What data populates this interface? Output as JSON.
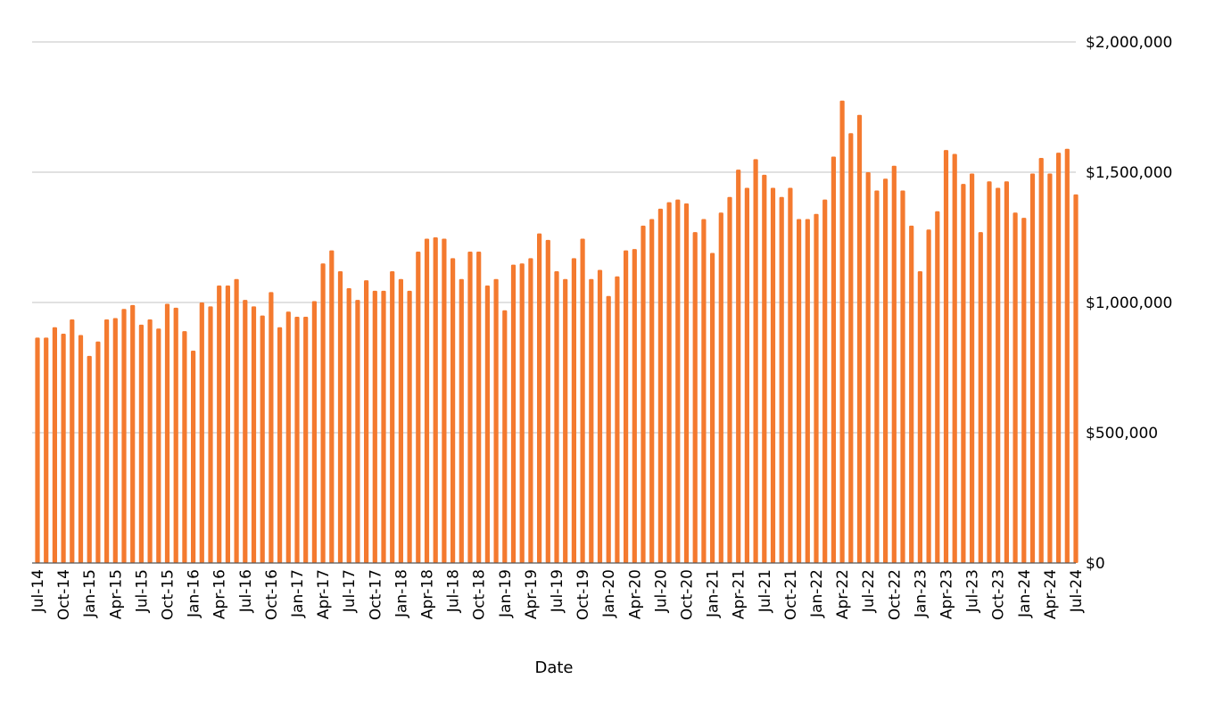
{
  "chart_data": {
    "type": "bar",
    "title": "",
    "xlabel": "Date",
    "ylabel": "",
    "ylim": [
      0,
      2000000
    ],
    "y_axis_side": "right",
    "grid": true,
    "legend": "none",
    "bar_color": "#F47A2F",
    "y_ticks": [
      {
        "value": 0,
        "label": "$0"
      },
      {
        "value": 500000,
        "label": "$500,000"
      },
      {
        "value": 1000000,
        "label": "$1,000,000"
      },
      {
        "value": 1500000,
        "label": "$1,500,000"
      },
      {
        "value": 2000000,
        "label": "$2,000,000"
      }
    ],
    "x_tick_labels": [
      "Jul-14",
      "Oct-14",
      "Jan-15",
      "Apr-15",
      "Jul-15",
      "Oct-15",
      "Jan-16",
      "Apr-16",
      "Jul-16",
      "Oct-16",
      "Jan-17",
      "Apr-17",
      "Jul-17",
      "Oct-17",
      "Jan-18",
      "Apr-18",
      "Jul-18",
      "Oct-18",
      "Jan-19",
      "Apr-19",
      "Jul-19",
      "Oct-19",
      "Jan-20",
      "Apr-20",
      "Jul-20",
      "Oct-20",
      "Jan-21",
      "Apr-21",
      "Jul-21",
      "Oct-21",
      "Jan-22",
      "Apr-22",
      "Jul-22",
      "Oct-22",
      "Jan-23",
      "Apr-23",
      "Jul-23",
      "Oct-23",
      "Jan-24",
      "Apr-24",
      "Jul-24"
    ],
    "categories": [
      "Jul-14",
      "Aug-14",
      "Sep-14",
      "Oct-14",
      "Nov-14",
      "Dec-14",
      "Jan-15",
      "Feb-15",
      "Mar-15",
      "Apr-15",
      "May-15",
      "Jun-15",
      "Jul-15",
      "Aug-15",
      "Sep-15",
      "Oct-15",
      "Nov-15",
      "Dec-15",
      "Jan-16",
      "Feb-16",
      "Mar-16",
      "Apr-16",
      "May-16",
      "Jun-16",
      "Jul-16",
      "Aug-16",
      "Sep-16",
      "Oct-16",
      "Nov-16",
      "Dec-16",
      "Jan-17",
      "Feb-17",
      "Mar-17",
      "Apr-17",
      "May-17",
      "Jun-17",
      "Jul-17",
      "Aug-17",
      "Sep-17",
      "Oct-17",
      "Nov-17",
      "Dec-17",
      "Jan-18",
      "Feb-18",
      "Mar-18",
      "Apr-18",
      "May-18",
      "Jun-18",
      "Jul-18",
      "Aug-18",
      "Sep-18",
      "Oct-18",
      "Nov-18",
      "Dec-18",
      "Jan-19",
      "Feb-19",
      "Mar-19",
      "Apr-19",
      "May-19",
      "Jun-19",
      "Jul-19",
      "Aug-19",
      "Sep-19",
      "Oct-19",
      "Nov-19",
      "Dec-19",
      "Jan-20",
      "Feb-20",
      "Mar-20",
      "Apr-20",
      "May-20",
      "Jun-20",
      "Jul-20",
      "Aug-20",
      "Sep-20",
      "Oct-20",
      "Nov-20",
      "Dec-20",
      "Jan-21",
      "Feb-21",
      "Mar-21",
      "Apr-21",
      "May-21",
      "Jun-21",
      "Jul-21",
      "Aug-21",
      "Sep-21",
      "Oct-21",
      "Nov-21",
      "Dec-21",
      "Jan-22",
      "Feb-22",
      "Mar-22",
      "Apr-22",
      "May-22",
      "Jun-22",
      "Jul-22",
      "Aug-22",
      "Sep-22",
      "Oct-22",
      "Nov-22",
      "Dec-22",
      "Jan-23",
      "Feb-23",
      "Mar-23",
      "Apr-23",
      "May-23",
      "Jun-23",
      "Jul-23",
      "Aug-23",
      "Sep-23",
      "Oct-23",
      "Nov-23",
      "Dec-23",
      "Jan-24",
      "Feb-24",
      "Mar-24",
      "Apr-24",
      "May-24",
      "Jun-24",
      "Jul-24"
    ],
    "values": [
      865000,
      865000,
      905000,
      880000,
      935000,
      875000,
      795000,
      850000,
      935000,
      940000,
      975000,
      990000,
      915000,
      935000,
      900000,
      995000,
      980000,
      890000,
      815000,
      1000000,
      985000,
      1065000,
      1065000,
      1090000,
      1010000,
      985000,
      950000,
      1040000,
      905000,
      965000,
      945000,
      945000,
      1005000,
      1150000,
      1200000,
      1120000,
      1055000,
      1010000,
      1085000,
      1045000,
      1045000,
      1120000,
      1090000,
      1045000,
      1195000,
      1245000,
      1250000,
      1245000,
      1170000,
      1090000,
      1195000,
      1195000,
      1065000,
      1090000,
      970000,
      1145000,
      1150000,
      1170000,
      1265000,
      1240000,
      1120000,
      1090000,
      1170000,
      1245000,
      1090000,
      1125000,
      1025000,
      1100000,
      1200000,
      1205000,
      1295000,
      1320000,
      1360000,
      1385000,
      1395000,
      1380000,
      1270000,
      1320000,
      1190000,
      1345000,
      1405000,
      1510000,
      1440000,
      1550000,
      1490000,
      1440000,
      1405000,
      1440000,
      1320000,
      1320000,
      1340000,
      1395000,
      1560000,
      1775000,
      1650000,
      1720000,
      1500000,
      1430000,
      1475000,
      1525000,
      1430000,
      1295000,
      1120000,
      1280000,
      1350000,
      1585000,
      1570000,
      1455000,
      1495000,
      1270000,
      1465000,
      1440000,
      1465000,
      1345000,
      1325000,
      1495000,
      1555000,
      1495000,
      1575000,
      1590000,
      1415000
    ]
  }
}
